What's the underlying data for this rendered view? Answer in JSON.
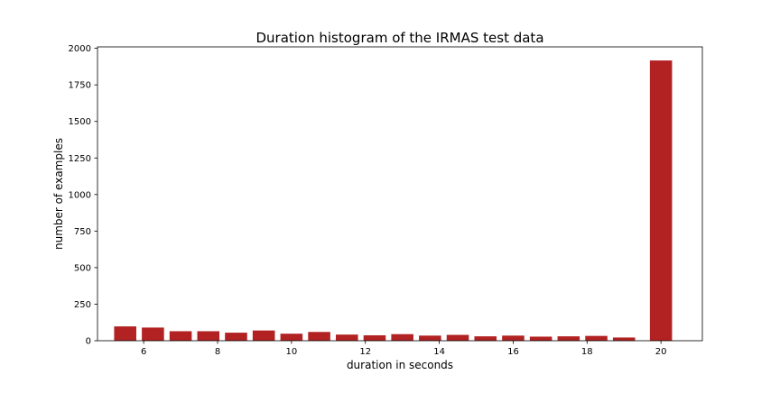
{
  "chart_data": {
    "type": "bar",
    "title": "Duration histogram of the IRMAS test data",
    "xlabel": "duration in seconds",
    "ylabel": "number of examples",
    "xlim": [
      4.75,
      21.12
    ],
    "ylim": [
      0,
      2010
    ],
    "xticks": [
      6,
      8,
      10,
      12,
      14,
      16,
      18,
      20
    ],
    "yticks": [
      0,
      250,
      500,
      750,
      1000,
      1250,
      1500,
      1750,
      2000
    ],
    "bar_color": "#b22222",
    "grid": false,
    "x": [
      5.5,
      6.25,
      7.0,
      7.75,
      8.5,
      9.25,
      10.0,
      10.75,
      11.5,
      12.25,
      13.0,
      13.75,
      14.5,
      15.25,
      16.0,
      16.75,
      17.5,
      18.25,
      19.0,
      20.0
    ],
    "values": [
      98,
      90,
      65,
      65,
      55,
      70,
      48,
      60,
      42,
      37,
      45,
      35,
      40,
      30,
      35,
      28,
      30,
      33,
      22,
      1917
    ]
  }
}
